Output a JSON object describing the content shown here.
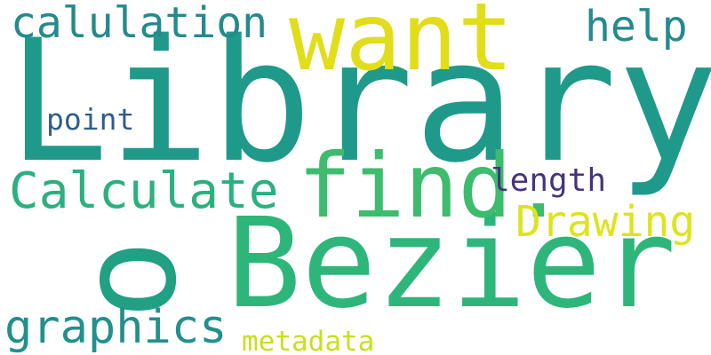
{
  "words": {
    "library": {
      "text": "Library",
      "color": "#1f9a8a"
    },
    "bezier": {
      "text": "Bezier",
      "color": "#2eb67a"
    },
    "want": {
      "text": "want",
      "color": "#e1dd1a"
    },
    "find": {
      "text": "find.",
      "color": "#3cbc6c"
    },
    "o": {
      "text": "o",
      "color": "#21a083"
    },
    "calculate": {
      "text": "Calculate",
      "color": "#2bb07f"
    },
    "calulation": {
      "text": "calulation",
      "color": "#238a8d"
    },
    "graphics": {
      "text": "graphics",
      "color": "#22908c"
    },
    "help": {
      "text": "help",
      "color": "#238a8d"
    },
    "drawing": {
      "text": "Drawing",
      "color": "#dde41c"
    },
    "point": {
      "text": "point",
      "color": "#2f5d8a"
    },
    "length": {
      "text": "length",
      "color": "#463480"
    },
    "metadata": {
      "text": "metadata",
      "color": "#c7e01f"
    }
  }
}
